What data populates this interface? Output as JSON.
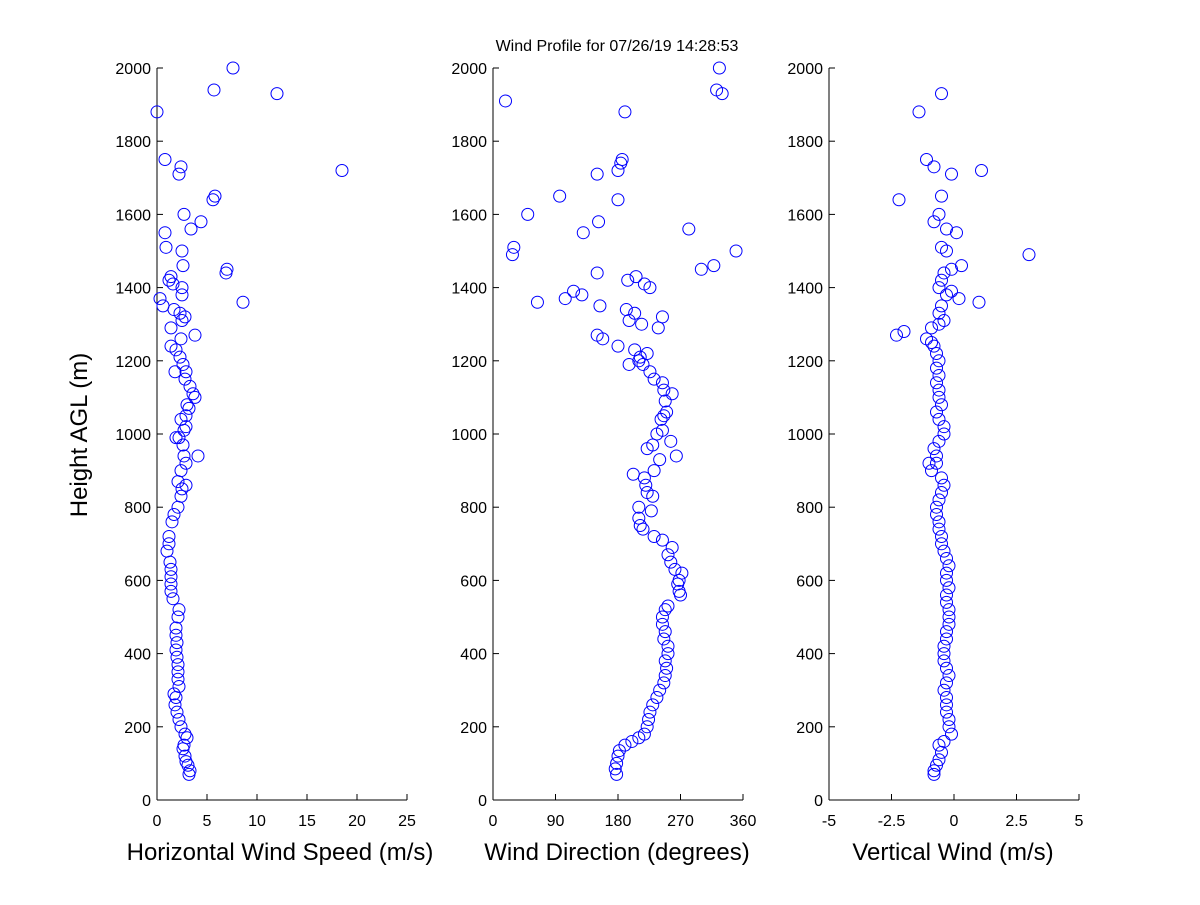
{
  "title": "Wind Profile for  07/26/19 14:28:53",
  "chart_data": [
    {
      "type": "scatter",
      "title": "",
      "xlabel": "Horizontal Wind Speed (m/s)",
      "ylabel": "Height AGL (m)",
      "xlim": [
        0,
        25
      ],
      "ylim": [
        0,
        2000
      ],
      "xticks": [
        "0",
        "5",
        "10",
        "15",
        "20",
        "25"
      ],
      "yticks": [
        "0",
        "200",
        "400",
        "600",
        "800",
        "1000",
        "1200",
        "1400",
        "1600",
        "1800",
        "2000"
      ],
      "marker": "open-circle",
      "color": "#0000ff",
      "points": [
        [
          3.2,
          70
        ],
        [
          3.3,
          80
        ],
        [
          3.1,
          95
        ],
        [
          2.9,
          105
        ],
        [
          2.8,
          120
        ],
        [
          2.6,
          140
        ],
        [
          2.7,
          150
        ],
        [
          3,
          170
        ],
        [
          2.8,
          180
        ],
        [
          2.4,
          200
        ],
        [
          2.2,
          220
        ],
        [
          2,
          240
        ],
        [
          1.8,
          260
        ],
        [
          1.9,
          280
        ],
        [
          1.7,
          290
        ],
        [
          2.2,
          310
        ],
        [
          2.1,
          330
        ],
        [
          2.1,
          350
        ],
        [
          2.1,
          370
        ],
        [
          2,
          390
        ],
        [
          1.9,
          410
        ],
        [
          2,
          430
        ],
        [
          1.9,
          450
        ],
        [
          1.9,
          470
        ],
        [
          2.1,
          500
        ],
        [
          2.2,
          520
        ],
        [
          1.6,
          550
        ],
        [
          1.4,
          570
        ],
        [
          1.4,
          590
        ],
        [
          1.4,
          610
        ],
        [
          1.4,
          630
        ],
        [
          1.3,
          650
        ],
        [
          1,
          680
        ],
        [
          1.2,
          700
        ],
        [
          1.2,
          720
        ],
        [
          1.5,
          760
        ],
        [
          1.7,
          780
        ],
        [
          2.1,
          800
        ],
        [
          2.4,
          830
        ],
        [
          2.5,
          850
        ],
        [
          2.9,
          860
        ],
        [
          2.1,
          870
        ],
        [
          2.4,
          900
        ],
        [
          2.9,
          920
        ],
        [
          2.7,
          940
        ],
        [
          4.1,
          940
        ],
        [
          2.6,
          970
        ],
        [
          2.2,
          990
        ],
        [
          1.9,
          990
        ],
        [
          2.7,
          1010
        ],
        [
          2.9,
          1020
        ],
        [
          2.4,
          1040
        ],
        [
          2.9,
          1050
        ],
        [
          3.2,
          1070
        ],
        [
          3,
          1080
        ],
        [
          3.8,
          1100
        ],
        [
          3.6,
          1110
        ],
        [
          3.3,
          1130
        ],
        [
          2.8,
          1150
        ],
        [
          2.9,
          1170
        ],
        [
          1.8,
          1170
        ],
        [
          2.6,
          1190
        ],
        [
          2.3,
          1210
        ],
        [
          1.9,
          1230
        ],
        [
          1.4,
          1240
        ],
        [
          2.4,
          1260
        ],
        [
          3.8,
          1270
        ],
        [
          1.4,
          1290
        ],
        [
          2.5,
          1310
        ],
        [
          2.8,
          1320
        ],
        [
          2.3,
          1330
        ],
        [
          8.6,
          1360
        ],
        [
          0.6,
          1350
        ],
        [
          1.7,
          1340
        ],
        [
          2.5,
          1380
        ],
        [
          0.3,
          1370
        ],
        [
          2.5,
          1400
        ],
        [
          1.6,
          1410
        ],
        [
          1.2,
          1420
        ],
        [
          1.4,
          1430
        ],
        [
          6.9,
          1440
        ],
        [
          7,
          1450
        ],
        [
          2.6,
          1460
        ],
        [
          2.5,
          1500
        ],
        [
          0.9,
          1510
        ],
        [
          0.8,
          1550
        ],
        [
          3.4,
          1560
        ],
        [
          4.4,
          1580
        ],
        [
          2.7,
          1600
        ],
        [
          5.6,
          1640
        ],
        [
          5.8,
          1650
        ],
        [
          18.5,
          1720
        ],
        [
          2.2,
          1710
        ],
        [
          2.4,
          1730
        ],
        [
          0.8,
          1750
        ],
        [
          0,
          1880
        ],
        [
          12,
          1930
        ],
        [
          5.7,
          1940
        ],
        [
          7.6,
          2000
        ]
      ]
    },
    {
      "type": "scatter",
      "title": "",
      "xlabel": "Wind Direction (degrees)",
      "ylabel": "",
      "xlim": [
        0,
        360
      ],
      "ylim": [
        0,
        2000
      ],
      "xticks": [
        "0",
        "90",
        "180",
        "270",
        "360"
      ],
      "yticks": [
        "0",
        "200",
        "400",
        "600",
        "800",
        "1000",
        "1200",
        "1400",
        "1600",
        "1800",
        "2000"
      ],
      "marker": "open-circle",
      "color": "#0000ff",
      "points": [
        [
          178,
          70
        ],
        [
          176,
          85
        ],
        [
          178,
          100
        ],
        [
          180,
          120
        ],
        [
          182,
          135
        ],
        [
          190,
          150
        ],
        [
          200,
          160
        ],
        [
          210,
          170
        ],
        [
          218,
          180
        ],
        [
          222,
          200
        ],
        [
          224,
          220
        ],
        [
          226,
          240
        ],
        [
          230,
          260
        ],
        [
          236,
          280
        ],
        [
          240,
          300
        ],
        [
          246,
          320
        ],
        [
          248,
          340
        ],
        [
          250,
          360
        ],
        [
          248,
          380
        ],
        [
          252,
          400
        ],
        [
          252,
          420
        ],
        [
          246,
          440
        ],
        [
          248,
          460
        ],
        [
          244,
          480
        ],
        [
          244,
          500
        ],
        [
          248,
          520
        ],
        [
          252,
          530
        ],
        [
          270,
          560
        ],
        [
          268,
          570
        ],
        [
          266,
          590
        ],
        [
          268,
          600
        ],
        [
          272,
          620
        ],
        [
          262,
          630
        ],
        [
          256,
          650
        ],
        [
          252,
          670
        ],
        [
          258,
          690
        ],
        [
          244,
          710
        ],
        [
          232,
          720
        ],
        [
          216,
          740
        ],
        [
          212,
          750
        ],
        [
          210,
          770
        ],
        [
          210,
          800
        ],
        [
          228,
          790
        ],
        [
          230,
          830
        ],
        [
          222,
          840
        ],
        [
          220,
          860
        ],
        [
          218,
          880
        ],
        [
          202,
          890
        ],
        [
          232,
          900
        ],
        [
          240,
          930
        ],
        [
          264,
          940
        ],
        [
          222,
          960
        ],
        [
          230,
          970
        ],
        [
          256,
          980
        ],
        [
          236,
          1000
        ],
        [
          244,
          1010
        ],
        [
          242,
          1040
        ],
        [
          246,
          1050
        ],
        [
          250,
          1060
        ],
        [
          248,
          1090
        ],
        [
          258,
          1110
        ],
        [
          246,
          1120
        ],
        [
          244,
          1140
        ],
        [
          232,
          1150
        ],
        [
          226,
          1170
        ],
        [
          216,
          1190
        ],
        [
          196,
          1190
        ],
        [
          210,
          1200
        ],
        [
          212,
          1210
        ],
        [
          222,
          1220
        ],
        [
          204,
          1230
        ],
        [
          180,
          1240
        ],
        [
          158,
          1260
        ],
        [
          150,
          1270
        ],
        [
          238,
          1290
        ],
        [
          214,
          1300
        ],
        [
          196,
          1310
        ],
        [
          244,
          1320
        ],
        [
          204,
          1330
        ],
        [
          192,
          1340
        ],
        [
          154,
          1350
        ],
        [
          64,
          1360
        ],
        [
          104,
          1370
        ],
        [
          128,
          1380
        ],
        [
          116,
          1390
        ],
        [
          226,
          1400
        ],
        [
          218,
          1410
        ],
        [
          194,
          1420
        ],
        [
          206,
          1430
        ],
        [
          150,
          1440
        ],
        [
          300,
          1450
        ],
        [
          318,
          1460
        ],
        [
          28,
          1490
        ],
        [
          30,
          1510
        ],
        [
          350,
          1500
        ],
        [
          282,
          1560
        ],
        [
          130,
          1550
        ],
        [
          50,
          1600
        ],
        [
          152,
          1580
        ],
        [
          96,
          1650
        ],
        [
          180,
          1640
        ],
        [
          150,
          1710
        ],
        [
          180,
          1720
        ],
        [
          184,
          1740
        ],
        [
          186,
          1750
        ],
        [
          190,
          1880
        ],
        [
          18,
          1910
        ],
        [
          330,
          1930
        ],
        [
          322,
          1940
        ],
        [
          326,
          2000
        ]
      ]
    },
    {
      "type": "scatter",
      "title": "",
      "xlabel": "Vertical Wind (m/s)",
      "ylabel": "",
      "xlim": [
        -5,
        5
      ],
      "ylim": [
        0,
        2000
      ],
      "xticks": [
        "-5",
        "-2.5",
        "0",
        "2.5",
        "5"
      ],
      "yticks": [
        "0",
        "200",
        "400",
        "600",
        "800",
        "1000",
        "1200",
        "1400",
        "1600",
        "1800",
        "2000"
      ],
      "marker": "open-circle",
      "color": "#0000ff",
      "points": [
        [
          -0.8,
          70
        ],
        [
          -0.8,
          80
        ],
        [
          -0.7,
          95
        ],
        [
          -0.6,
          110
        ],
        [
          -0.5,
          130
        ],
        [
          -0.6,
          150
        ],
        [
          -0.4,
          160
        ],
        [
          -0.1,
          180
        ],
        [
          -0.2,
          200
        ],
        [
          -0.2,
          220
        ],
        [
          -0.3,
          240
        ],
        [
          -0.3,
          260
        ],
        [
          -0.3,
          280
        ],
        [
          -0.4,
          300
        ],
        [
          -0.3,
          320
        ],
        [
          -0.2,
          340
        ],
        [
          -0.3,
          360
        ],
        [
          -0.4,
          380
        ],
        [
          -0.4,
          400
        ],
        [
          -0.4,
          420
        ],
        [
          -0.3,
          440
        ],
        [
          -0.3,
          460
        ],
        [
          -0.2,
          480
        ],
        [
          -0.2,
          500
        ],
        [
          -0.2,
          520
        ],
        [
          -0.3,
          540
        ],
        [
          -0.3,
          560
        ],
        [
          -0.2,
          580
        ],
        [
          -0.3,
          600
        ],
        [
          -0.3,
          620
        ],
        [
          -0.2,
          640
        ],
        [
          -0.3,
          660
        ],
        [
          -0.4,
          680
        ],
        [
          -0.5,
          700
        ],
        [
          -0.5,
          720
        ],
        [
          -0.6,
          740
        ],
        [
          -0.6,
          760
        ],
        [
          -0.7,
          780
        ],
        [
          -0.7,
          800
        ],
        [
          -0.6,
          820
        ],
        [
          -0.5,
          840
        ],
        [
          -0.4,
          860
        ],
        [
          -0.5,
          880
        ],
        [
          -0.9,
          900
        ],
        [
          -1,
          920
        ],
        [
          -0.7,
          920
        ],
        [
          -0.7,
          940
        ],
        [
          -0.8,
          960
        ],
        [
          -0.6,
          980
        ],
        [
          -0.4,
          1000
        ],
        [
          -0.4,
          1020
        ],
        [
          -0.6,
          1040
        ],
        [
          -0.7,
          1060
        ],
        [
          -0.5,
          1080
        ],
        [
          -0.6,
          1100
        ],
        [
          -0.6,
          1120
        ],
        [
          -0.7,
          1140
        ],
        [
          -0.6,
          1160
        ],
        [
          -0.7,
          1180
        ],
        [
          -0.6,
          1200
        ],
        [
          -0.7,
          1220
        ],
        [
          -0.8,
          1240
        ],
        [
          -0.9,
          1250
        ],
        [
          -1.1,
          1260
        ],
        [
          -2.3,
          1270
        ],
        [
          -2,
          1280
        ],
        [
          -0.9,
          1290
        ],
        [
          -0.6,
          1300
        ],
        [
          -0.4,
          1310
        ],
        [
          -0.6,
          1330
        ],
        [
          -0.5,
          1350
        ],
        [
          0.2,
          1370
        ],
        [
          1,
          1360
        ],
        [
          -0.3,
          1380
        ],
        [
          -0.1,
          1390
        ],
        [
          -0.6,
          1400
        ],
        [
          -0.5,
          1420
        ],
        [
          -0.4,
          1440
        ],
        [
          -0.1,
          1450
        ],
        [
          0.3,
          1460
        ],
        [
          3,
          1490
        ],
        [
          -0.3,
          1500
        ],
        [
          -0.5,
          1510
        ],
        [
          0.1,
          1550
        ],
        [
          -0.3,
          1560
        ],
        [
          -0.8,
          1580
        ],
        [
          -0.6,
          1600
        ],
        [
          -2.2,
          1640
        ],
        [
          -0.5,
          1650
        ],
        [
          -0.1,
          1710
        ],
        [
          1.1,
          1720
        ],
        [
          -0.8,
          1730
        ],
        [
          -1.1,
          1750
        ],
        [
          -1.4,
          1880
        ],
        [
          -0.5,
          1930
        ]
      ]
    }
  ]
}
